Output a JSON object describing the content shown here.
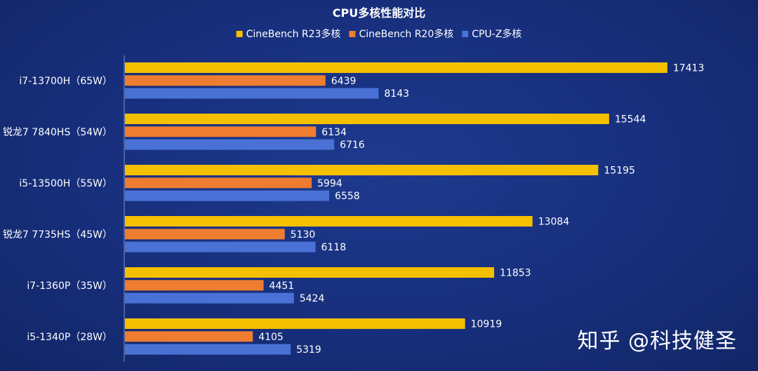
{
  "chart_data": {
    "type": "bar",
    "orientation": "horizontal",
    "title": "CPU多核性能对比",
    "categories": [
      "i7-13700H（65W）",
      "锐龙7 7840HS（54W）",
      "i5-13500H（55W）",
      "锐龙7 7735HS（45W）",
      "i7-1360P（35W）",
      "i5-1340P（28W）"
    ],
    "series": [
      {
        "name": "CineBench R23多核",
        "color": "#f5c000",
        "values": [
          17413,
          15544,
          15195,
          13084,
          11853,
          10919
        ]
      },
      {
        "name": "CineBench R20多核",
        "color": "#ee7d31",
        "values": [
          6439,
          6134,
          5994,
          5130,
          4451,
          4105
        ]
      },
      {
        "name": "CPU-Z多核",
        "color": "#4a72d6",
        "values": [
          8143,
          6716,
          6558,
          6118,
          5424,
          5319
        ]
      }
    ],
    "xlim": [
      0,
      17800
    ],
    "grid": false,
    "legend_position": "top-center",
    "data_labels": true
  },
  "watermark": "知乎 @科技健圣"
}
